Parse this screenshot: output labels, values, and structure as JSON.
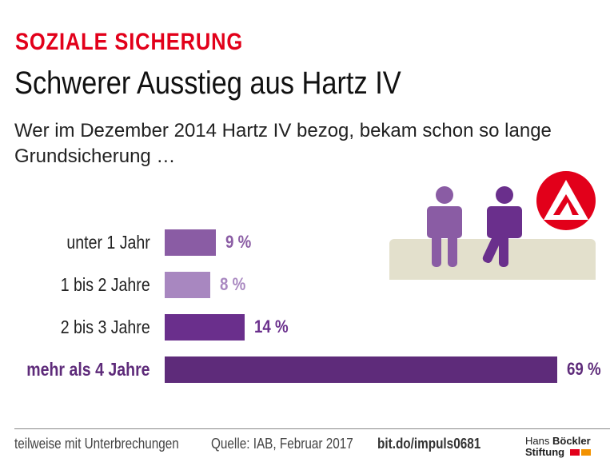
{
  "header": {
    "kicker": "SOZIALE SICHERUNG",
    "title": "Schwerer Ausstieg aus Hartz IV",
    "subtitle": "Wer im Dezember 2014 Hartz IV bezog, bekam schon so lange Grundsicherung …"
  },
  "chart_data": {
    "type": "bar",
    "orientation": "horizontal",
    "categories": [
      "unter 1 Jahr",
      "1 bis 2 Jahre",
      "2 bis 3 Jahre",
      "mehr als 4 Jahre"
    ],
    "values": [
      9,
      8,
      14,
      69
    ],
    "value_labels": [
      "9 %",
      "8 %",
      "14 %",
      "69 %"
    ],
    "unit": "%",
    "colors": [
      "#8a5ca4",
      "#a887c0",
      "#6a2f8c",
      "#5e2b7a"
    ],
    "highlight_category": "mehr als 4 Jahre",
    "grid": false
  },
  "footer": {
    "note": "teilweise mit Unterbrechungen",
    "source": "Quelle: IAB, Februar 2017",
    "link": "bit.do/impuls0681"
  },
  "logo": {
    "line1a": "Hans",
    "line1b": "Böckler",
    "line2": "Stiftung",
    "colors": [
      "#e2001a",
      "#f39200"
    ]
  },
  "illustration": {
    "figure_colors": [
      "#8a5ca4",
      "#6a2f8c"
    ],
    "bench_color": "#e3e0cc",
    "agency_logo_color": "#e2001a",
    "icons": [
      "person-standing-icon",
      "person-sitting-icon",
      "arbeitsagentur-logo-icon"
    ]
  }
}
